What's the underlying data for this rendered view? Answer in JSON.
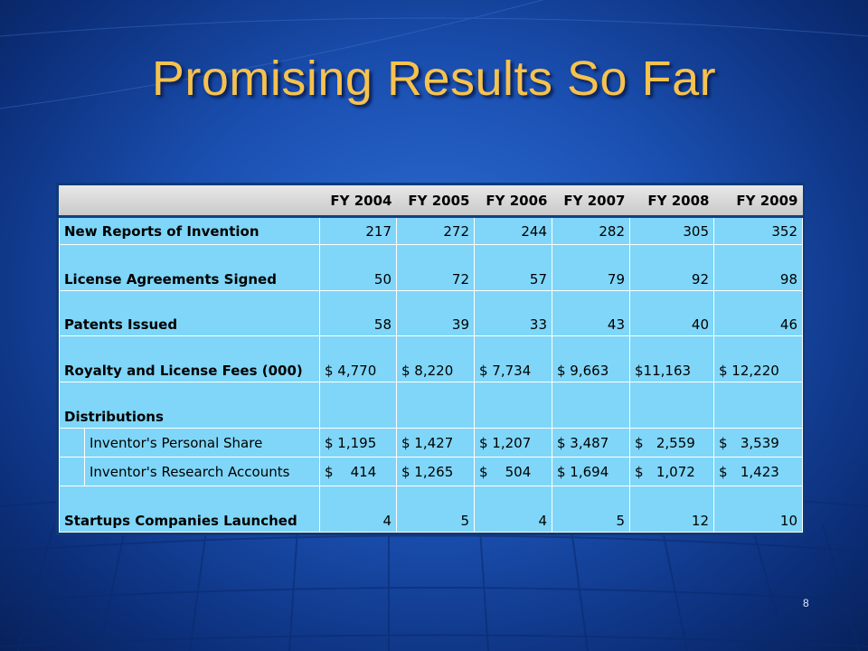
{
  "slide": {
    "title": "Promising Results So Far",
    "number": "8"
  },
  "table": {
    "headers": [
      "",
      "",
      "FY 2004",
      "FY 2005",
      "FY 2006",
      "FY 2007",
      "FY 2008",
      "FY 2009"
    ],
    "rows": [
      {
        "label": "New Reports of Invention",
        "values": [
          "217",
          "272",
          "244",
          "282",
          "305",
          "352"
        ]
      },
      {
        "label": "License Agreements Signed",
        "values": [
          "50",
          "72",
          "57",
          "79",
          "92",
          "98"
        ]
      },
      {
        "label": "Patents Issued",
        "values": [
          "58",
          "39",
          "33",
          "43",
          "40",
          "46"
        ]
      },
      {
        "label": "Royalty and License Fees (000)",
        "values": [
          "$ 4,770",
          "$ 8,220",
          "$ 7,734",
          "$ 9,663",
          "$11,163",
          "$ 12,220"
        ]
      },
      {
        "label": "Distributions",
        "values": [
          "",
          "",
          "",
          "",
          "",
          ""
        ]
      },
      {
        "label": "Inventor's Personal Share",
        "values": [
          "$ 1,195",
          "$ 1,427",
          "$ 1,207",
          "$ 3,487",
          "$   2,559",
          "$   3,539"
        ]
      },
      {
        "label": "Inventor's Research Accounts",
        "values": [
          "$    414",
          "$ 1,265",
          "$    504",
          "$ 1,694",
          "$   1,072",
          "$   1,423"
        ]
      },
      {
        "label": "Startups Companies Launched",
        "values": [
          "4",
          "5",
          "4",
          "5",
          "12",
          "10"
        ]
      }
    ]
  }
}
